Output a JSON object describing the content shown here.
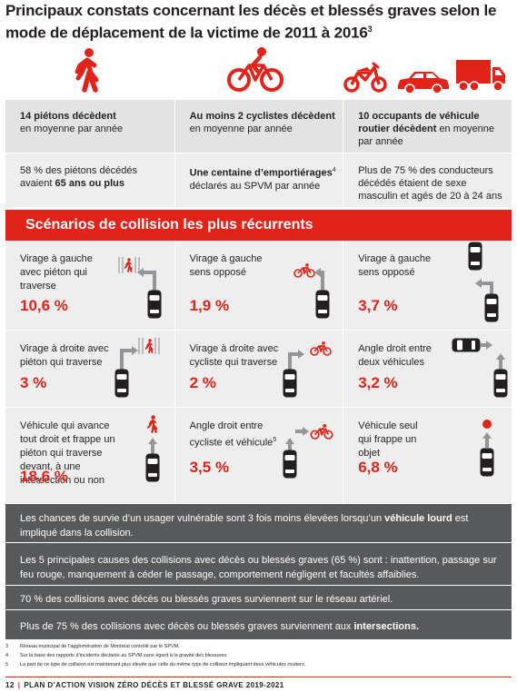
{
  "title": {
    "text": "Principaux constats concernant les décès et blessés graves selon le mode de déplacement de la victime de 2011 à 2016",
    "sup": "3"
  },
  "colors": {
    "accent": "#e2231a",
    "dark": "#58595b",
    "light": "#eeeeee"
  },
  "icons": [
    "pedestrian-icon",
    "cyclist-icon",
    "motorcycle-icon",
    "car-icon",
    "truck-icon"
  ],
  "stats": {
    "pedestrians": {
      "r1_bold": "14 piétons décèdent",
      "r1_rest": "en moyenne par année",
      "r2_pre": "58 % des piétons décédés avaient",
      "r2_bold": "65 ans ou plus"
    },
    "cyclists": {
      "r1_bold": "Au moins 2 cyclistes décèdent",
      "r1_rest": "en moyenne par année",
      "r2_bold": "Une centaine d’emportiérages",
      "r2_sup": "4",
      "r2_rest": "déclarés au SPVM par année"
    },
    "vehicles": {
      "r1_bold": "10 occupants de véhicule routier décèdent",
      "r1_rest": "en moyenne par année",
      "r2_text": "Plus de 75 % des conducteurs décédés étaient de sexe masculin et agés de 20 à 24 ans"
    }
  },
  "banner": "Scénarios de collision les plus récurrents",
  "scenarios": [
    {
      "label": "Virage à gauche avec piéton qui traverse",
      "pct": "10,6 %"
    },
    {
      "label": "Virage à gauche sens opposé",
      "pct": "1,9 %"
    },
    {
      "label": "Virage à gauche sens opposé",
      "pct": "3,7 %"
    },
    {
      "label": "Virage à droite avec piéton qui traverse",
      "pct": "3 %"
    },
    {
      "label": "Virage à droite avec cycliste qui traverse",
      "pct": "2 %"
    },
    {
      "label": "Angle droit entre deux véhicules",
      "pct": "3,2 %"
    },
    {
      "label": "Véhicule qui avance tout droit et frappe un piéton qui traverse devant, à une intersection ou non",
      "pct": "18,6 %"
    },
    {
      "label": "Angle droit entre cycliste et véhicule",
      "label_sup": "5",
      "pct": "3,5 %"
    },
    {
      "label": "Véhicule seul qui frappe un objet",
      "pct": "6,8 %"
    }
  ],
  "notes": {
    "n1_pre": "Les chances de survie d’un usager vulnérable sont 3 fois moins élevées lorsqu’un",
    "n1_bold": "véhicule lourd",
    "n1_post": "est impliqué dans la collision.",
    "n2": "Les 5 principales causes des collisions avec décès ou blessés graves (65 %) sont : inattention, passage sur feu rouge, manquement à céder le passage, comportement négligent et facultés affaiblies.",
    "n3": "70 % des collisions avec décès ou blessés graves surviennent sur le réseau artériel.",
    "n4_pre": "Plus de 75 % des collisions avec décès ou blessés graves surviennent aux",
    "n4_bold": "intersections."
  },
  "footnotes": [
    {
      "num": "3",
      "text": "Réseau municipal de l’agglomération de Montréal contrôlé par le SPVM."
    },
    {
      "num": "4",
      "text": "Sur la base des rapports d’incidents déclarés au SPVM sans égard à la gravité des blessures."
    },
    {
      "num": "5",
      "text": "La part de ce type de collision est maintenant plus élevée que celle du même type de collision impliquant deux véhicules routiers."
    }
  ],
  "footer": {
    "page": "12",
    "sep": "|",
    "text": "PLAN D’ACTION VISION ZÉRO DÉCÈS ET BLESSÉ GRAVE 2019-2021"
  }
}
